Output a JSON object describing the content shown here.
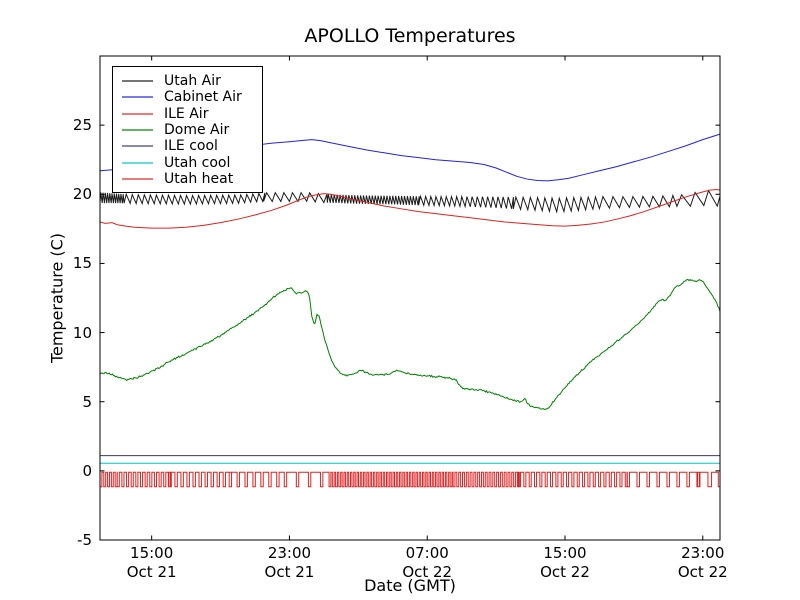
{
  "title": "APOLLO Temperatures",
  "xlabel": "Date (GMT)",
  "ylabel": "Temperature (C)",
  "axes": {
    "y_ticks": [
      {
        "label": "-5",
        "value": -5
      },
      {
        "label": "0",
        "value": 0
      },
      {
        "label": "5",
        "value": 5
      },
      {
        "label": "10",
        "value": 10
      },
      {
        "label": "15",
        "value": 15
      },
      {
        "label": "20",
        "value": 20
      },
      {
        "label": "25",
        "value": 25
      }
    ],
    "x_ticks": [
      {
        "time": "15:00",
        "date": "Oct 21",
        "hour": 3
      },
      {
        "time": "23:00",
        "date": "Oct 21",
        "hour": 11
      },
      {
        "time": "07:00",
        "date": "Oct 22",
        "hour": 19
      },
      {
        "time": "15:00",
        "date": "Oct 22",
        "hour": 27
      },
      {
        "time": "23:00",
        "date": "Oct 22",
        "hour": 35
      }
    ]
  },
  "legend": {
    "entries": [
      {
        "label": "Utah Air",
        "color": "#1a1a1a"
      },
      {
        "label": "Cabinet Air",
        "color": "#2222dd"
      },
      {
        "label": "ILE Air",
        "color": "#dd2222"
      },
      {
        "label": "Dome Air",
        "color": "#008000"
      },
      {
        "label": "ILE cool",
        "color": "#3a3a6e"
      },
      {
        "label": "Utah cool",
        "color": "#00c8c8"
      },
      {
        "label": "Utah heat",
        "color": "#dd2222"
      }
    ]
  },
  "chart_data": {
    "type": "line",
    "title": "APOLLO Temperatures",
    "xlabel": "Date (GMT)",
    "ylabel": "Temperature (C)",
    "x_unit": "hours after Oct 21 12:00 GMT",
    "xlim": [
      0,
      36
    ],
    "ylim": [
      -5,
      30
    ],
    "grid": false,
    "legend_position": "upper left",
    "series": [
      {
        "name": "Utah Air",
        "color": "#1a1a1a",
        "style": "sawtooth",
        "mean": [
          [
            0,
            19.75
          ],
          [
            2,
            19.65
          ],
          [
            5,
            19.6
          ],
          [
            8,
            19.65
          ],
          [
            9.5,
            19.8
          ],
          [
            12,
            19.8
          ],
          [
            13,
            19.7
          ],
          [
            15,
            19.62
          ],
          [
            17,
            19.58
          ],
          [
            19,
            19.52
          ],
          [
            21,
            19.48
          ],
          [
            23,
            19.42
          ],
          [
            25,
            19.32
          ],
          [
            26.5,
            19.22
          ],
          [
            27.5,
            19.28
          ],
          [
            29,
            19.4
          ],
          [
            31,
            19.45
          ],
          [
            33,
            19.5
          ],
          [
            34,
            19.6
          ],
          [
            34.8,
            19.7
          ],
          [
            35.3,
            19.75
          ],
          [
            35.7,
            19.55
          ],
          [
            36,
            19.45
          ]
        ],
        "amplitude": [
          [
            0,
            0.38
          ],
          [
            1.5,
            0.32
          ],
          [
            9,
            0.3
          ],
          [
            10,
            0.32
          ],
          [
            13,
            0.3
          ],
          [
            16,
            0.3
          ],
          [
            20,
            0.33
          ],
          [
            23,
            0.4
          ],
          [
            25,
            0.45
          ],
          [
            27,
            0.5
          ],
          [
            28.5,
            0.45
          ],
          [
            30,
            0.4
          ],
          [
            32,
            0.38
          ],
          [
            33.5,
            0.42
          ],
          [
            34.5,
            0.52
          ],
          [
            35.3,
            0.55
          ],
          [
            36,
            0.3
          ]
        ],
        "period_segments": [
          [
            0,
            1.4,
            0.13
          ],
          [
            1.4,
            9.5,
            0.35
          ],
          [
            9.5,
            13.2,
            0.5
          ],
          [
            13.2,
            18.5,
            0.17
          ],
          [
            18.5,
            24,
            0.3
          ],
          [
            24,
            29,
            0.42
          ],
          [
            29,
            33.5,
            0.58
          ],
          [
            33.5,
            36,
            0.78
          ]
        ]
      },
      {
        "name": "Cabinet Air",
        "color": "#2222dd",
        "style": "line",
        "points": [
          [
            0,
            21.7
          ],
          [
            1,
            21.8
          ],
          [
            2,
            21.95
          ],
          [
            3,
            22.2
          ],
          [
            4,
            22.45
          ],
          [
            5,
            22.7
          ],
          [
            6,
            22.95
          ],
          [
            7,
            23.2
          ],
          [
            8,
            23.4
          ],
          [
            9,
            23.55
          ],
          [
            10,
            23.7
          ],
          [
            11,
            23.8
          ],
          [
            11.8,
            23.9
          ],
          [
            12.3,
            23.95
          ],
          [
            12.8,
            23.88
          ],
          [
            13.5,
            23.7
          ],
          [
            14.5,
            23.45
          ],
          [
            15.5,
            23.2
          ],
          [
            16.5,
            23.0
          ],
          [
            17.5,
            22.8
          ],
          [
            18.5,
            22.65
          ],
          [
            19.5,
            22.5
          ],
          [
            20.5,
            22.4
          ],
          [
            21.5,
            22.3
          ],
          [
            22.3,
            22.15
          ],
          [
            23,
            21.9
          ],
          [
            23.6,
            21.6
          ],
          [
            24.2,
            21.3
          ],
          [
            24.8,
            21.1
          ],
          [
            25.4,
            21.0
          ],
          [
            26,
            20.97
          ],
          [
            26.6,
            21.05
          ],
          [
            27.2,
            21.15
          ],
          [
            28,
            21.4
          ],
          [
            29,
            21.7
          ],
          [
            30,
            22.0
          ],
          [
            31,
            22.35
          ],
          [
            32,
            22.7
          ],
          [
            33,
            23.1
          ],
          [
            34,
            23.5
          ],
          [
            35,
            23.95
          ],
          [
            35.5,
            24.15
          ],
          [
            36,
            24.35
          ]
        ]
      },
      {
        "name": "ILE Air",
        "color": "#dd2222",
        "style": "line",
        "points": [
          [
            0,
            18.0
          ],
          [
            0.3,
            17.9
          ],
          [
            0.7,
            17.95
          ],
          [
            1,
            17.8
          ],
          [
            1.5,
            17.7
          ],
          [
            2,
            17.62
          ],
          [
            3,
            17.55
          ],
          [
            4,
            17.55
          ],
          [
            5,
            17.62
          ],
          [
            6,
            17.75
          ],
          [
            7,
            17.95
          ],
          [
            8,
            18.2
          ],
          [
            9,
            18.5
          ],
          [
            10,
            18.85
          ],
          [
            10.8,
            19.2
          ],
          [
            11.5,
            19.55
          ],
          [
            12,
            19.8
          ],
          [
            12.5,
            19.95
          ],
          [
            13,
            20.05
          ],
          [
            13.4,
            20.0
          ],
          [
            14,
            19.85
          ],
          [
            14.8,
            19.6
          ],
          [
            15.6,
            19.4
          ],
          [
            16.5,
            19.15
          ],
          [
            17.5,
            18.95
          ],
          [
            18.5,
            18.75
          ],
          [
            19.5,
            18.6
          ],
          [
            20.5,
            18.45
          ],
          [
            21.5,
            18.3
          ],
          [
            22.5,
            18.15
          ],
          [
            23.5,
            18.0
          ],
          [
            24.5,
            17.9
          ],
          [
            25.5,
            17.8
          ],
          [
            26.3,
            17.72
          ],
          [
            27,
            17.7
          ],
          [
            27.7,
            17.75
          ],
          [
            28.5,
            17.85
          ],
          [
            29.3,
            18.0
          ],
          [
            30,
            18.2
          ],
          [
            30.8,
            18.45
          ],
          [
            31.6,
            18.75
          ],
          [
            32.4,
            19.1
          ],
          [
            33.2,
            19.45
          ],
          [
            34,
            19.8
          ],
          [
            34.8,
            20.1
          ],
          [
            35.4,
            20.3
          ],
          [
            35.8,
            20.35
          ],
          [
            36,
            20.3
          ]
        ]
      },
      {
        "name": "Dome Air",
        "color": "#008000",
        "style": "line",
        "jitter": 0.08,
        "points": [
          [
            0,
            7.0
          ],
          [
            0.3,
            7.1
          ],
          [
            0.7,
            6.95
          ],
          [
            1.2,
            6.7
          ],
          [
            1.6,
            6.6
          ],
          [
            2,
            6.7
          ],
          [
            2.5,
            6.9
          ],
          [
            3,
            7.2
          ],
          [
            3.5,
            7.5
          ],
          [
            4,
            7.9
          ],
          [
            4.5,
            8.2
          ],
          [
            5,
            8.5
          ],
          [
            5.5,
            8.8
          ],
          [
            6,
            9.1
          ],
          [
            6.5,
            9.45
          ],
          [
            7,
            9.8
          ],
          [
            7.5,
            10.2
          ],
          [
            8,
            10.6
          ],
          [
            8.5,
            11.0
          ],
          [
            9,
            11.45
          ],
          [
            9.5,
            11.9
          ],
          [
            10,
            12.5
          ],
          [
            10.4,
            12.85
          ],
          [
            10.8,
            13.1
          ],
          [
            11.1,
            13.25
          ],
          [
            11.4,
            12.8
          ],
          [
            11.7,
            12.9
          ],
          [
            12,
            13.0
          ],
          [
            12.15,
            12.7
          ],
          [
            12.3,
            11.2
          ],
          [
            12.45,
            10.5
          ],
          [
            12.6,
            11.3
          ],
          [
            12.75,
            11.1
          ],
          [
            12.9,
            10.2
          ],
          [
            13.1,
            9.3
          ],
          [
            13.4,
            8.1
          ],
          [
            13.7,
            7.4
          ],
          [
            14,
            7.05
          ],
          [
            14.4,
            6.9
          ],
          [
            14.8,
            7.0
          ],
          [
            15.1,
            7.3
          ],
          [
            15.4,
            7.15
          ],
          [
            15.8,
            6.9
          ],
          [
            16.3,
            6.95
          ],
          [
            16.8,
            7.0
          ],
          [
            17.2,
            7.25
          ],
          [
            17.6,
            7.15
          ],
          [
            18,
            7.0
          ],
          [
            18.6,
            6.9
          ],
          [
            19.2,
            6.85
          ],
          [
            19.8,
            6.8
          ],
          [
            20.3,
            6.7
          ],
          [
            20.7,
            6.55
          ],
          [
            20.9,
            6.1
          ],
          [
            21.1,
            5.95
          ],
          [
            21.6,
            5.9
          ],
          [
            22.2,
            5.85
          ],
          [
            22.8,
            5.6
          ],
          [
            23.3,
            5.4
          ],
          [
            23.8,
            5.2
          ],
          [
            24.2,
            5.05
          ],
          [
            24.5,
            4.95
          ],
          [
            24.65,
            5.25
          ],
          [
            24.8,
            4.9
          ],
          [
            25.1,
            4.6
          ],
          [
            25.5,
            4.5
          ],
          [
            25.9,
            4.45
          ],
          [
            26.1,
            4.65
          ],
          [
            26.3,
            5.0
          ],
          [
            26.6,
            5.45
          ],
          [
            27,
            6.05
          ],
          [
            27.5,
            6.7
          ],
          [
            28,
            7.3
          ],
          [
            28.5,
            7.9
          ],
          [
            29,
            8.4
          ],
          [
            29.5,
            8.85
          ],
          [
            30,
            9.35
          ],
          [
            30.5,
            9.85
          ],
          [
            31,
            10.35
          ],
          [
            31.5,
            10.95
          ],
          [
            32,
            11.6
          ],
          [
            32.3,
            12.1
          ],
          [
            32.6,
            12.4
          ],
          [
            32.8,
            12.3
          ],
          [
            33.1,
            12.7
          ],
          [
            33.4,
            13.3
          ],
          [
            33.7,
            13.45
          ],
          [
            34,
            13.75
          ],
          [
            34.3,
            13.85
          ],
          [
            34.6,
            13.7
          ],
          [
            34.9,
            13.8
          ],
          [
            35.1,
            13.55
          ],
          [
            35.3,
            13.1
          ],
          [
            35.5,
            12.8
          ],
          [
            35.7,
            12.4
          ],
          [
            35.9,
            11.9
          ],
          [
            36,
            11.5
          ]
        ]
      },
      {
        "name": "ILE cool",
        "color": "#3a3a6e",
        "style": "hline",
        "value": 1.1
      },
      {
        "name": "Utah cool",
        "color": "#00c8c8",
        "style": "hline",
        "value": 0.55
      },
      {
        "name": "Utah heat",
        "color": "#dd2222",
        "style": "pulse",
        "high": -0.1,
        "low": -1.15,
        "segments": [
          [
            0,
            1,
            0.22,
            0.5
          ],
          [
            1,
            4,
            0.27,
            0.45
          ],
          [
            4,
            7.5,
            0.35,
            0.4
          ],
          [
            7.5,
            10.7,
            0.46,
            0.3
          ],
          [
            10.7,
            13.3,
            0.7,
            0.2
          ],
          [
            13.3,
            20.5,
            0.19,
            0.55
          ],
          [
            20.5,
            24.3,
            0.22,
            0.5
          ],
          [
            24.3,
            30.6,
            0.31,
            0.38
          ],
          [
            30.6,
            34.7,
            0.58,
            0.25
          ],
          [
            34.7,
            35.3,
            0.9,
            0.15
          ],
          [
            35.3,
            36,
            0.6,
            0.35
          ]
        ]
      }
    ]
  }
}
